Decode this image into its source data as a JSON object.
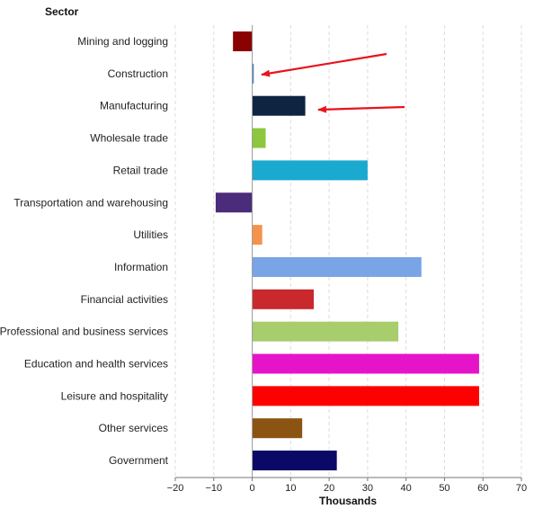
{
  "chart_data": {
    "type": "bar",
    "orientation": "horizontal",
    "category_axis_title": "Sector",
    "xlabel": "Thousands",
    "xlim": [
      -20,
      70
    ],
    "x_ticks": [
      -20,
      -10,
      0,
      10,
      20,
      30,
      40,
      50,
      60,
      70
    ],
    "x_tick_labels": [
      "−20",
      "−10",
      "0",
      "10",
      "20",
      "30",
      "40",
      "50",
      "60",
      "70"
    ],
    "grid": "vertical-dashed",
    "categories": [
      "Mining and logging",
      "Construction",
      "Manufacturing",
      "Wholesale trade",
      "Retail trade",
      "Transportation and warehousing",
      "Utilities",
      "Information",
      "Financial activities",
      "Professional and business services",
      "Education and health services",
      "Leisure and hospitality",
      "Other services",
      "Government"
    ],
    "values": [
      -5,
      0.4,
      13.8,
      3.5,
      30,
      -9.5,
      2.6,
      44,
      16,
      38,
      59,
      59,
      13,
      22
    ],
    "colors": [
      "#8b0000",
      "#4a7fc1",
      "#0f2440",
      "#8dc63f",
      "#1aa9cf",
      "#4b2c7a",
      "#f5934b",
      "#79a4e6",
      "#c9282d",
      "#a7cd6c",
      "#e614c9",
      "#ff0000",
      "#8b5412",
      "#0a0a66"
    ],
    "annotations": [
      {
        "type": "arrow",
        "points_to": "Construction",
        "color": "#e8141d"
      },
      {
        "type": "arrow",
        "points_to": "Manufacturing",
        "color": "#e8141d"
      }
    ]
  }
}
